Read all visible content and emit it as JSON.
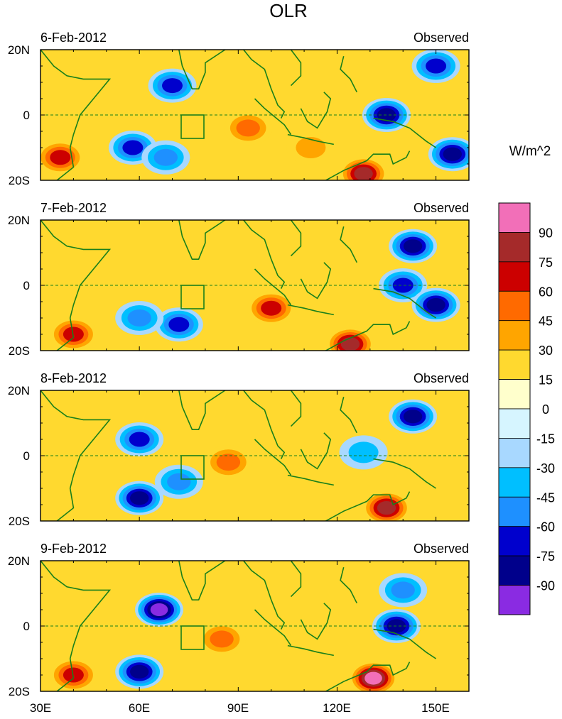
{
  "chart_data": {
    "type": "heatmap",
    "title": "OLR",
    "units": "W/m^2",
    "x_ticks": [
      "30E",
      "60E",
      "90E",
      "120E",
      "150E"
    ],
    "y_ticks": [
      "20N",
      "0",
      "20S"
    ],
    "xlim": [
      30,
      160
    ],
    "ylim": [
      -20,
      20
    ],
    "colorbar": {
      "levels": [
        90,
        75,
        60,
        45,
        30,
        15,
        0,
        -15,
        -30,
        -45,
        -60,
        -75,
        -90
      ],
      "colors": [
        "#f26fb8",
        "#a52a2a",
        "#cc0000",
        "#ff6a00",
        "#ffa500",
        "#ffd92f",
        "#ffffcc",
        "#d6f5ff",
        "#a8d8ff",
        "#00bfff",
        "#1e90ff",
        "#0000cd",
        "#00008b",
        "#8a2be2"
      ]
    },
    "panels": [
      {
        "date": "6-Feb-2012",
        "label": "Observed",
        "cells": [
          {
            "lon": 70,
            "lat": 9,
            "value": -60
          },
          {
            "lon": 58,
            "lat": -10,
            "value": -60
          },
          {
            "lon": 68,
            "lat": -13,
            "value": -45
          },
          {
            "lon": 93,
            "lat": -4,
            "value": 45
          },
          {
            "lon": 112,
            "lat": -10,
            "value": 30
          },
          {
            "lon": 128,
            "lat": -18,
            "value": 75
          },
          {
            "lon": 135,
            "lat": 0,
            "value": -75
          },
          {
            "lon": 150,
            "lat": 15,
            "value": -60
          },
          {
            "lon": 155,
            "lat": -12,
            "value": -75
          },
          {
            "lon": 36,
            "lat": -13,
            "value": 60
          }
        ]
      },
      {
        "date": "7-Feb-2012",
        "label": "Observed",
        "cells": [
          {
            "lon": 72,
            "lat": -12,
            "value": -60
          },
          {
            "lon": 60,
            "lat": -10,
            "value": -45
          },
          {
            "lon": 100,
            "lat": -7,
            "value": 60
          },
          {
            "lon": 124,
            "lat": -18,
            "value": 75
          },
          {
            "lon": 143,
            "lat": 12,
            "value": -75
          },
          {
            "lon": 140,
            "lat": 0,
            "value": -60
          },
          {
            "lon": 150,
            "lat": -6,
            "value": -75
          },
          {
            "lon": 40,
            "lat": -15,
            "value": 60
          }
        ]
      },
      {
        "date": "8-Feb-2012",
        "label": "Observed",
        "cells": [
          {
            "lon": 60,
            "lat": 5,
            "value": -60
          },
          {
            "lon": 60,
            "lat": -13,
            "value": -75
          },
          {
            "lon": 72,
            "lat": -8,
            "value": -45
          },
          {
            "lon": 87,
            "lat": -2,
            "value": 45
          },
          {
            "lon": 135,
            "lat": -16,
            "value": 75
          },
          {
            "lon": 143,
            "lat": 12,
            "value": -75
          },
          {
            "lon": 128,
            "lat": 1,
            "value": -30
          }
        ]
      },
      {
        "date": "9-Feb-2012",
        "label": "Observed",
        "cells": [
          {
            "lon": 66,
            "lat": 5,
            "value": -90
          },
          {
            "lon": 60,
            "lat": -14,
            "value": -75
          },
          {
            "lon": 85,
            "lat": -4,
            "value": 45
          },
          {
            "lon": 131,
            "lat": -16,
            "value": 90
          },
          {
            "lon": 140,
            "lat": 11,
            "value": -45
          },
          {
            "lon": 138,
            "lat": 0,
            "value": -75
          },
          {
            "lon": 40,
            "lat": -15,
            "value": 60
          }
        ]
      }
    ]
  }
}
